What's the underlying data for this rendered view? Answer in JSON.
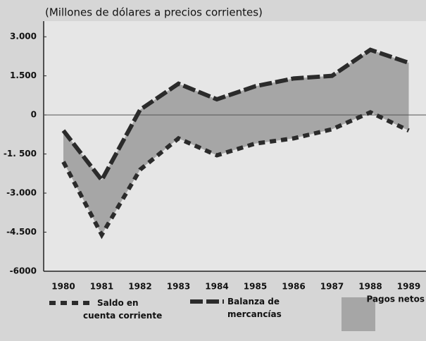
{
  "chart_data": {
    "type": "area-between",
    "title": "(Millones de dólares a precios corrientes)",
    "categories": [
      "1980",
      "1981",
      "1982",
      "1983",
      "1984",
      "1985",
      "1986",
      "1987",
      "1988",
      "1989"
    ],
    "series": [
      {
        "name": "Saldo en cuenta corriente",
        "color": "#2b2b2b",
        "values": [
          -1800,
          -4600,
          -2100,
          -900,
          -1550,
          -1100,
          -900,
          -550,
          100,
          -600
        ]
      },
      {
        "name": "Balanza de mercancías",
        "color": "#2b2b2b",
        "values": [
          -600,
          -2500,
          200,
          1200,
          600,
          1100,
          1400,
          1500,
          2500,
          2000
        ]
      }
    ],
    "area": {
      "name": "Pagos netos",
      "color": "#a6a6a6"
    },
    "ylim": [
      -6000,
      3600
    ],
    "yticks": [
      {
        "value": 3000,
        "label": "3.000"
      },
      {
        "value": 1500,
        "label": "1.500"
      },
      0,
      {
        "value": -1500,
        "label": "-1. 500"
      },
      {
        "value": -3000,
        "label": "-3.000"
      },
      {
        "value": -4500,
        "label": "-4.500"
      },
      {
        "value": -6000,
        "label": "-6000"
      }
    ]
  }
}
